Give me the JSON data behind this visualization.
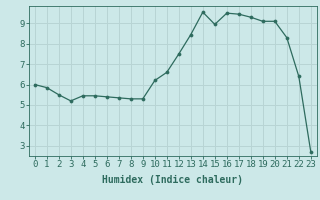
{
  "x": [
    0,
    1,
    2,
    3,
    4,
    5,
    6,
    7,
    8,
    9,
    10,
    11,
    12,
    13,
    14,
    15,
    16,
    17,
    18,
    19,
    20,
    21,
    22,
    23
  ],
  "y": [
    6.0,
    5.85,
    5.5,
    5.2,
    5.45,
    5.45,
    5.4,
    5.35,
    5.3,
    5.3,
    6.2,
    6.6,
    7.5,
    8.45,
    9.55,
    8.95,
    9.5,
    9.45,
    9.3,
    9.1,
    9.1,
    8.3,
    6.4,
    2.7
  ],
  "line_color": "#2e6b5e",
  "marker_color": "#2e6b5e",
  "bg_color": "#cce8e8",
  "grid_color": "#b8d4d4",
  "axis_color": "#2e6b5e",
  "xlabel": "Humidex (Indice chaleur)",
  "ylim": [
    2.5,
    9.85
  ],
  "xlim": [
    -0.5,
    23.5
  ],
  "yticks": [
    3,
    4,
    5,
    6,
    7,
    8,
    9
  ],
  "xticks": [
    0,
    1,
    2,
    3,
    4,
    5,
    6,
    7,
    8,
    9,
    10,
    11,
    12,
    13,
    14,
    15,
    16,
    17,
    18,
    19,
    20,
    21,
    22,
    23
  ],
  "xlabel_fontsize": 7,
  "tick_fontsize": 6.5
}
